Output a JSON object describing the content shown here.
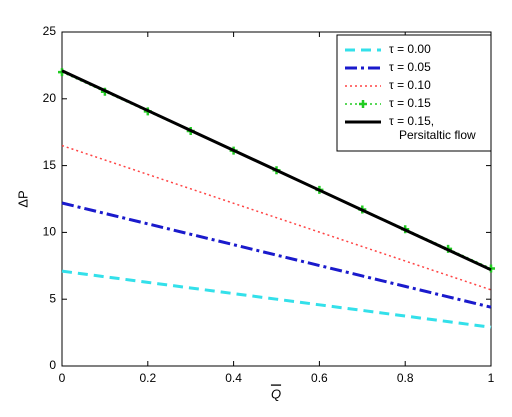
{
  "chart_data": {
    "type": "line",
    "x_label": "Q",
    "y_label": "ΔP",
    "x": [
      0,
      0.1,
      0.2,
      0.3,
      0.4,
      0.5,
      0.6,
      0.7,
      0.8,
      0.9,
      1
    ],
    "xlim": [
      0,
      1
    ],
    "xticks": [
      0,
      0.2,
      0.4,
      0.6,
      0.8,
      1
    ],
    "ylim": [
      0,
      25
    ],
    "yticks": [
      0,
      5,
      10,
      15,
      20,
      25
    ],
    "grid": false,
    "legend": "upper right",
    "series": [
      {
        "name": "τ = 0.00",
        "color": "#33e0ea",
        "style": "dashed",
        "values": [
          7.1,
          6.68,
          6.26,
          5.84,
          5.42,
          5.0,
          4.58,
          4.16,
          3.74,
          3.32,
          2.9
        ]
      },
      {
        "name": "τ = 0.05",
        "color": "#1a1acc",
        "style": "dashdot",
        "values": [
          12.2,
          11.42,
          10.64,
          9.86,
          9.08,
          8.3,
          7.52,
          6.74,
          5.96,
          5.18,
          4.4
        ]
      },
      {
        "name": "τ = 0.10",
        "color": "#ff4444",
        "style": "dotted",
        "values": [
          16.5,
          15.42,
          14.34,
          13.26,
          12.18,
          11.1,
          10.02,
          8.94,
          7.86,
          6.78,
          5.7
        ]
      },
      {
        "name": "τ = 0.15",
        "color": "#22cc22",
        "style": "dotted-plus",
        "values": [
          22,
          20.53,
          19.06,
          17.59,
          16.12,
          14.65,
          13.18,
          11.71,
          10.24,
          8.77,
          7.3
        ]
      },
      {
        "name": "τ = 0.15,\nPersitaltic flow",
        "color": "#000000",
        "style": "solid",
        "values": [
          22.1,
          20.61,
          19.12,
          17.63,
          16.14,
          14.65,
          13.16,
          11.67,
          10.18,
          8.69,
          7.2
        ]
      }
    ]
  }
}
